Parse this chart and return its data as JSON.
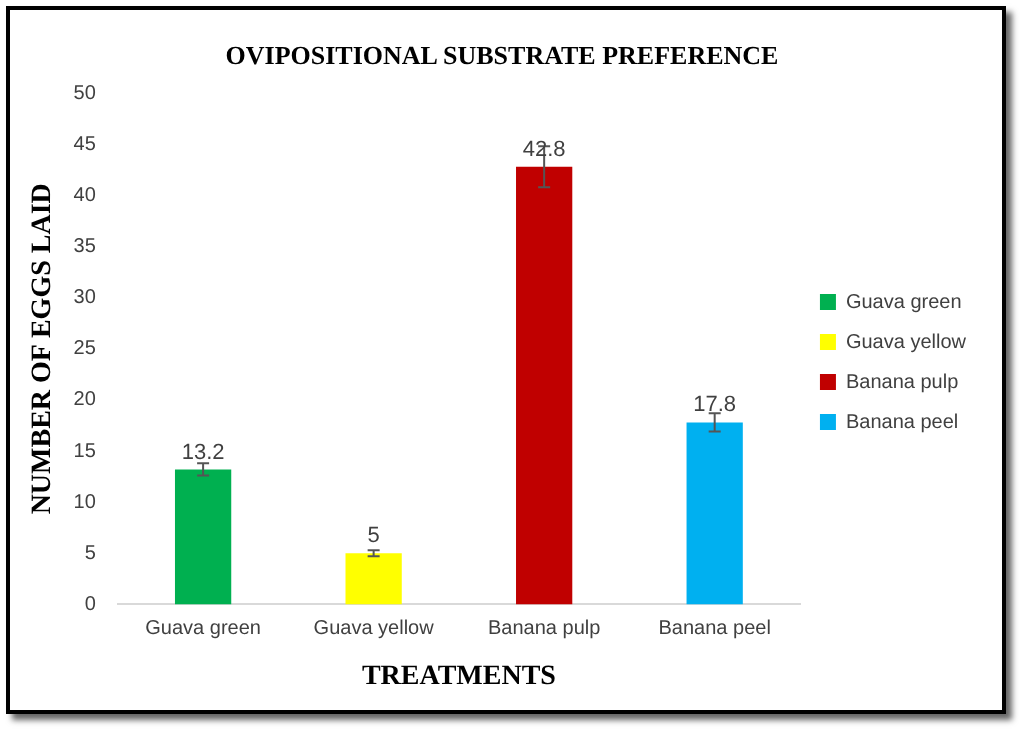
{
  "chart_data": {
    "type": "bar",
    "title": "OVIPOSITIONAL SUBSTRATE PREFERENCE",
    "xlabel": "TREATMENTS",
    "ylabel": "NUMBER OF EGGS LAID",
    "categories": [
      "Guava green",
      "Guava yellow",
      "Banana pulp",
      "Banana peel"
    ],
    "series": [
      {
        "name": "Guava green",
        "color": "#00b050",
        "values": [
          13.2,
          null,
          null,
          null
        ],
        "errors": [
          0.6,
          null,
          null,
          null
        ]
      },
      {
        "name": "Guava yellow",
        "color": "#ffff00",
        "values": [
          null,
          5,
          null,
          null
        ],
        "errors": [
          null,
          0.3,
          null,
          null
        ]
      },
      {
        "name": "Banana pulp",
        "color": "#c00000",
        "values": [
          null,
          null,
          42.8,
          null
        ],
        "errors": [
          null,
          null,
          2.0,
          null
        ]
      },
      {
        "name": "Banana peel",
        "color": "#00b0f0",
        "values": [
          null,
          null,
          null,
          17.8
        ],
        "errors": [
          null,
          null,
          null,
          0.9
        ]
      }
    ],
    "ylim": [
      0,
      50
    ],
    "yticks": [
      0,
      5,
      10,
      15,
      20,
      25,
      30,
      35,
      40,
      45,
      50
    ],
    "grid": false,
    "legend": "right",
    "data_labels": true
  }
}
